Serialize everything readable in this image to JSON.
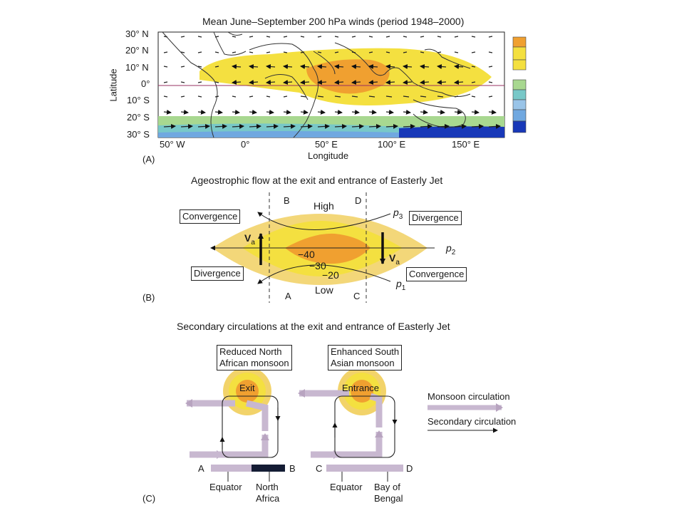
{
  "panel_a": {
    "title": "Mean June–September 200 hPa winds (period 1948–2000)",
    "ylabel": "Latitude",
    "xlabel": "Longitude",
    "lat_ticks": [
      "30° N",
      "20° N",
      "10° N",
      "0°",
      "10° S",
      "20° S",
      "30° S"
    ],
    "lon_ticks": [
      "50° W",
      "0°",
      "50° E",
      "100° E",
      "150° E"
    ],
    "panel_label": "(A)",
    "colors": {
      "easterly_strong": "#f0a030",
      "easterly_weak": "#f4e040",
      "westerly_1": "#a8d890",
      "westerly_2": "#78c8c8",
      "westerly_3": "#70a8e0",
      "westerly_4": "#1838b8"
    }
  },
  "panel_b": {
    "title": "Ageostrophic flow at the exit and entrance of Easterly Jet",
    "panel_label": "(B)",
    "section_labels": {
      "b": "B",
      "d": "D",
      "a": "A",
      "c": "C"
    },
    "high": "High",
    "low": "Low",
    "boxes": {
      "conv_top": "Convergence",
      "div_top": "Divergence",
      "div_bottom": "Divergence",
      "conv_bottom": "Convergence"
    },
    "contours": {
      "c40": "−40",
      "c30": "−30",
      "c20": "−20"
    },
    "isobars": {
      "p1": "p",
      "p1_sub": "1",
      "p2": "p",
      "p2_sub": "2",
      "p3": "p",
      "p3_sub": "3"
    },
    "vector": {
      "v": "V",
      "sub": "a"
    }
  },
  "panel_c": {
    "title": "Secondary circulations at the exit and entrance of Easterly Jet",
    "panel_label": "(C)",
    "left": {
      "box_line1": "Reduced North",
      "box_line2": "African monsoon",
      "jet": "Exit",
      "end_a": "A",
      "end_b": "B",
      "equator": "Equator",
      "region_line1": "North",
      "region_line2": "Africa"
    },
    "right": {
      "box_line1": "Enhanced South",
      "box_line2": "Asian monsoon",
      "jet": "Entrance",
      "end_c": "C",
      "end_d": "D",
      "equator": "Equator",
      "region_line1": "Bay of",
      "region_line2": "Bengal"
    },
    "legend": {
      "monsoon": "Monsoon circulation",
      "secondary": "Secondary circulation"
    }
  }
}
